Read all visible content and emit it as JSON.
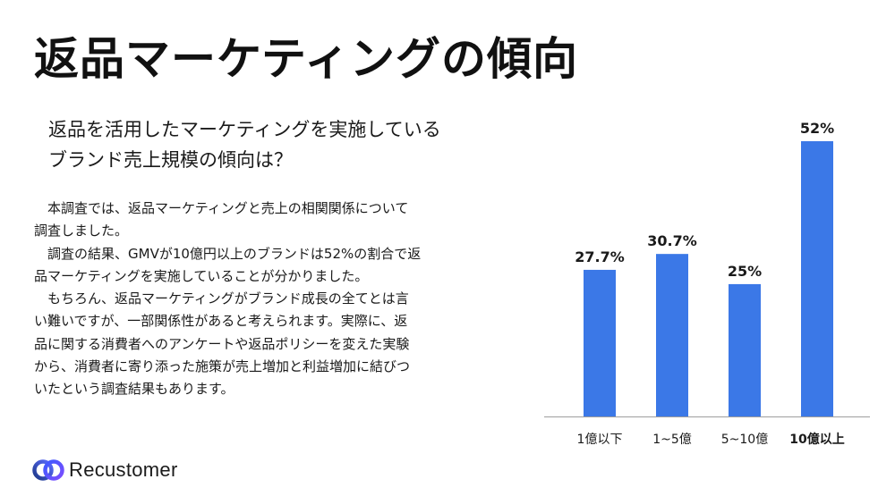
{
  "title": "返品マーケティングの傾向",
  "subtitle": {
    "line1": "返品を活用したマーケティングを実施している",
    "line2": "ブランド売上規模の傾向は？"
  },
  "body": {
    "lines": [
      "　本調査では、返品マーケティングと売上の相関関係について",
      "調査しました。",
      "　調査の結果、GMVが10億円以上のブランドは52%の割合で返",
      "品マーケティングを実施していることが分かりました。",
      "　もちろん、返品マーケティングがブランド成長の全てとは言",
      "い難いですが、一部関係性があると考えられます。実際に、返",
      "品に関する消費者へのアンケートや返品ポリシーを変えた実験",
      "から、消費者に寄り添った施策が売上増加と利益増加に結びつ",
      "いたという調査結果もあります。"
    ]
  },
  "logo": {
    "text": "Recustomer",
    "icon": "recustomer-logo-icon"
  },
  "colors": {
    "bar": "#3b78e7",
    "axis": "#9e9e9e",
    "text": "#1a1a1a"
  },
  "chart_data": {
    "type": "bar",
    "categories": [
      "1億以下",
      "1~5億",
      "5~10億",
      "10億以上"
    ],
    "values": [
      27.7,
      30.7,
      25,
      52
    ],
    "data_labels": [
      "27.7%",
      "30.7%",
      "25%",
      "52%"
    ],
    "highlight_category": "10億以上",
    "title": "",
    "xlabel": "",
    "ylabel": "",
    "ylim": [
      0,
      52
    ],
    "grid": false,
    "legend": "none"
  }
}
